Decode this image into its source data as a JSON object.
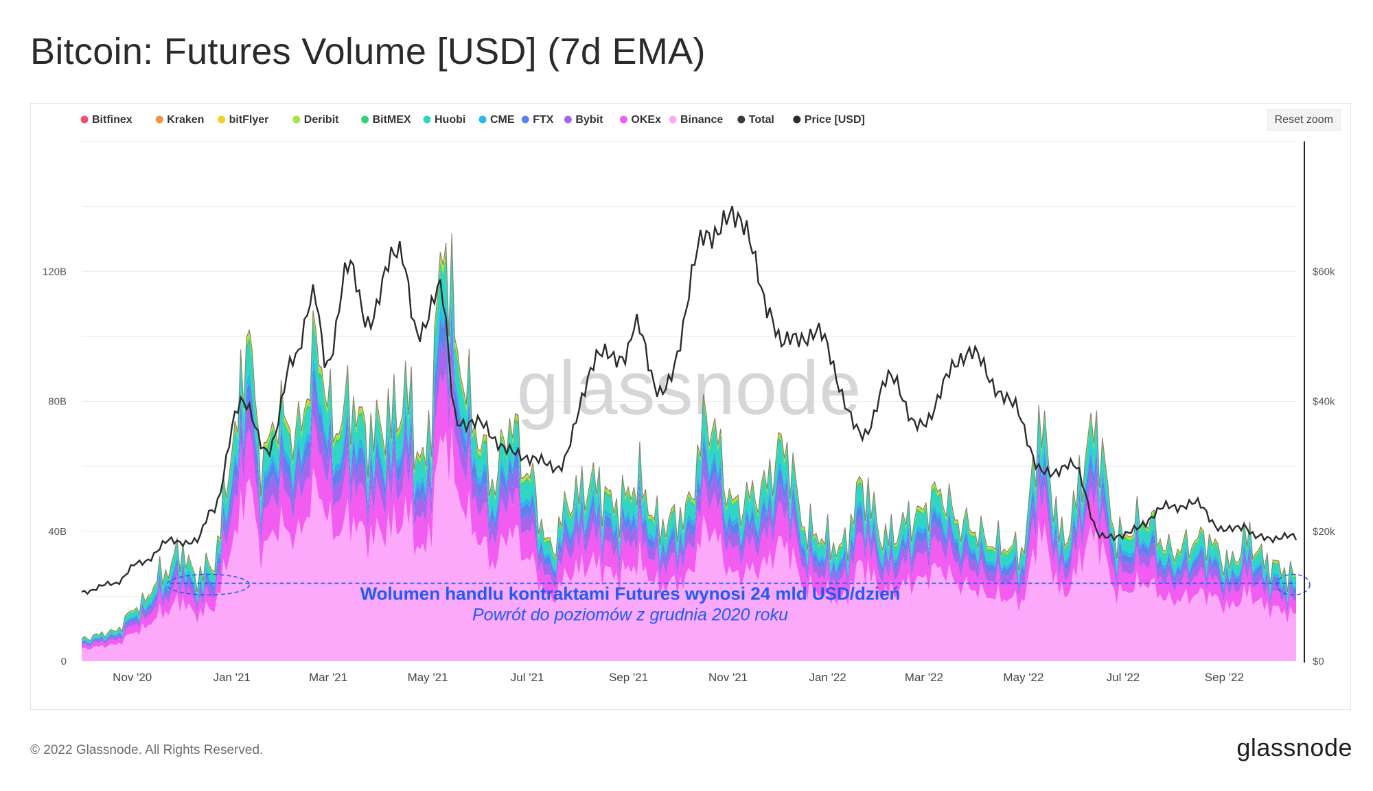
{
  "page": {
    "title": "Bitcoin: Futures Volume [USD] (7d EMA)",
    "reset_zoom": "Reset zoom",
    "footer": "© 2022 Glassnode. All Rights Reserved.",
    "logo": "glassnode",
    "watermark": "glassnode"
  },
  "chart_data": {
    "type": "area",
    "stacked": true,
    "title": "Bitcoin: Futures Volume [USD] (7d EMA)",
    "legend_placement": "top-left",
    "grid": true,
    "x_ticks": [
      "Nov '20",
      "Jan '21",
      "Mar '21",
      "May '21",
      "Jul '21",
      "Sep '21",
      "Nov '21",
      "Jan '22",
      "Mar '22",
      "May '22",
      "Jul '22",
      "Sep '22"
    ],
    "x_range": [
      "2020-10-01",
      "2022-10-15"
    ],
    "y_left": {
      "ticks": [
        "0",
        "40B",
        "80B",
        "120B"
      ],
      "range": [
        0,
        160
      ],
      "unit": "B USD"
    },
    "y_right": {
      "ticks": [
        "$0",
        "$20k",
        "$40k",
        "$60k"
      ],
      "range": [
        0,
        80000
      ],
      "unit": "USD"
    },
    "legend": [
      {
        "name": "Bitfinex",
        "color": "#f0506e"
      },
      {
        "name": "Kraken",
        "color": "#f7903d"
      },
      {
        "name": "bitFlyer",
        "color": "#f2d024"
      },
      {
        "name": "Deribit",
        "color": "#a6e33c"
      },
      {
        "name": "BitMEX",
        "color": "#34d178"
      },
      {
        "name": "Huobi",
        "color": "#2fd6c3"
      },
      {
        "name": "CME",
        "color": "#29b8ea"
      },
      {
        "name": "FTX",
        "color": "#5c82ee"
      },
      {
        "name": "Bybit",
        "color": "#a566ee"
      },
      {
        "name": "OKEx",
        "color": "#f25cf0"
      },
      {
        "name": "Binance",
        "color": "#fca8fb"
      },
      {
        "name": "Total",
        "color": "#3a3a3a"
      },
      {
        "name": "Price [USD]",
        "color": "#2b2b2b"
      }
    ],
    "total_volume_B": [
      [
        "2020-10-01",
        7
      ],
      [
        "2020-10-20",
        9
      ],
      [
        "2020-11-05",
        17
      ],
      [
        "2020-11-20",
        27
      ],
      [
        "2020-12-01",
        34
      ],
      [
        "2020-12-10",
        26
      ],
      [
        "2020-12-20",
        30
      ],
      [
        "2021-01-03",
        68
      ],
      [
        "2021-01-10",
        101
      ],
      [
        "2021-01-20",
        62
      ],
      [
        "2021-01-29",
        76
      ],
      [
        "2021-02-10",
        70
      ],
      [
        "2021-02-22",
        97
      ],
      [
        "2021-03-05",
        72
      ],
      [
        "2021-03-15",
        80
      ],
      [
        "2021-03-25",
        70
      ],
      [
        "2021-04-10",
        75
      ],
      [
        "2021-04-18",
        82
      ],
      [
        "2021-04-28",
        60
      ],
      [
        "2021-05-12",
        128
      ],
      [
        "2021-05-20",
        92
      ],
      [
        "2021-06-01",
        70
      ],
      [
        "2021-06-10",
        55
      ],
      [
        "2021-06-21",
        74
      ],
      [
        "2021-07-01",
        58
      ],
      [
        "2021-07-15",
        35
      ],
      [
        "2021-07-28",
        50
      ],
      [
        "2021-08-10",
        55
      ],
      [
        "2021-08-25",
        48
      ],
      [
        "2021-09-07",
        55
      ],
      [
        "2021-09-20",
        42
      ],
      [
        "2021-10-05",
        45
      ],
      [
        "2021-10-20",
        75
      ],
      [
        "2021-11-05",
        48
      ],
      [
        "2021-11-20",
        52
      ],
      [
        "2021-12-05",
        66
      ],
      [
        "2021-12-20",
        40
      ],
      [
        "2022-01-10",
        35
      ],
      [
        "2022-01-22",
        54
      ],
      [
        "2022-02-05",
        38
      ],
      [
        "2022-02-25",
        45
      ],
      [
        "2022-03-10",
        52
      ],
      [
        "2022-03-25",
        42
      ],
      [
        "2022-04-15",
        36
      ],
      [
        "2022-04-30",
        34
      ],
      [
        "2022-05-11",
        72
      ],
      [
        "2022-05-25",
        38
      ],
      [
        "2022-06-14",
        71
      ],
      [
        "2022-06-28",
        38
      ],
      [
        "2022-07-15",
        44
      ],
      [
        "2022-07-30",
        34
      ],
      [
        "2022-08-20",
        38
      ],
      [
        "2022-09-05",
        30
      ],
      [
        "2022-09-15",
        38
      ],
      [
        "2022-09-28",
        30
      ],
      [
        "2022-10-15",
        26
      ]
    ],
    "binance_share_of_total": 0.55,
    "price_usd": [
      [
        "2020-10-01",
        10700
      ],
      [
        "2020-10-20",
        11900
      ],
      [
        "2020-11-05",
        15000
      ],
      [
        "2020-11-25",
        18500
      ],
      [
        "2020-12-10",
        18300
      ],
      [
        "2020-12-20",
        23500
      ],
      [
        "2021-01-08",
        40500
      ],
      [
        "2021-01-22",
        32000
      ],
      [
        "2021-02-08",
        46000
      ],
      [
        "2021-02-20",
        57000
      ],
      [
        "2021-02-28",
        45000
      ],
      [
        "2021-03-13",
        61000
      ],
      [
        "2021-03-25",
        52500
      ],
      [
        "2021-04-14",
        64000
      ],
      [
        "2021-04-25",
        49500
      ],
      [
        "2021-05-08",
        58000
      ],
      [
        "2021-05-19",
        37000
      ],
      [
        "2021-06-01",
        36500
      ],
      [
        "2021-06-22",
        32000
      ],
      [
        "2021-07-20",
        30000
      ],
      [
        "2021-08-14",
        47000
      ],
      [
        "2021-08-30",
        47000
      ],
      [
        "2021-09-06",
        51500
      ],
      [
        "2021-09-21",
        41000
      ],
      [
        "2021-10-20",
        66000
      ],
      [
        "2021-11-09",
        68500
      ],
      [
        "2021-11-26",
        54000
      ],
      [
        "2021-12-05",
        49000
      ],
      [
        "2021-12-25",
        50500
      ],
      [
        "2022-01-22",
        35000
      ],
      [
        "2022-02-10",
        44000
      ],
      [
        "2022-02-24",
        36000
      ],
      [
        "2022-03-28",
        47500
      ],
      [
        "2022-04-25",
        39500
      ],
      [
        "2022-05-12",
        29000
      ],
      [
        "2022-06-01",
        30000
      ],
      [
        "2022-06-18",
        19000
      ],
      [
        "2022-07-01",
        19500
      ],
      [
        "2022-07-30",
        23800
      ],
      [
        "2022-08-15",
        24200
      ],
      [
        "2022-09-01",
        20000
      ],
      [
        "2022-09-13",
        21000
      ],
      [
        "2022-09-20",
        19000
      ],
      [
        "2022-10-15",
        19100
      ]
    ],
    "annotation": {
      "level_B": 24,
      "range": [
        "2020-11-24",
        "2022-10-15"
      ],
      "line1": "Wolumen handlu kontraktami Futures wynosi 24 mld USD/dzień",
      "line2": "Powrót do poziomów z grudnia 2020 roku",
      "color": "#1f5cf0"
    }
  }
}
